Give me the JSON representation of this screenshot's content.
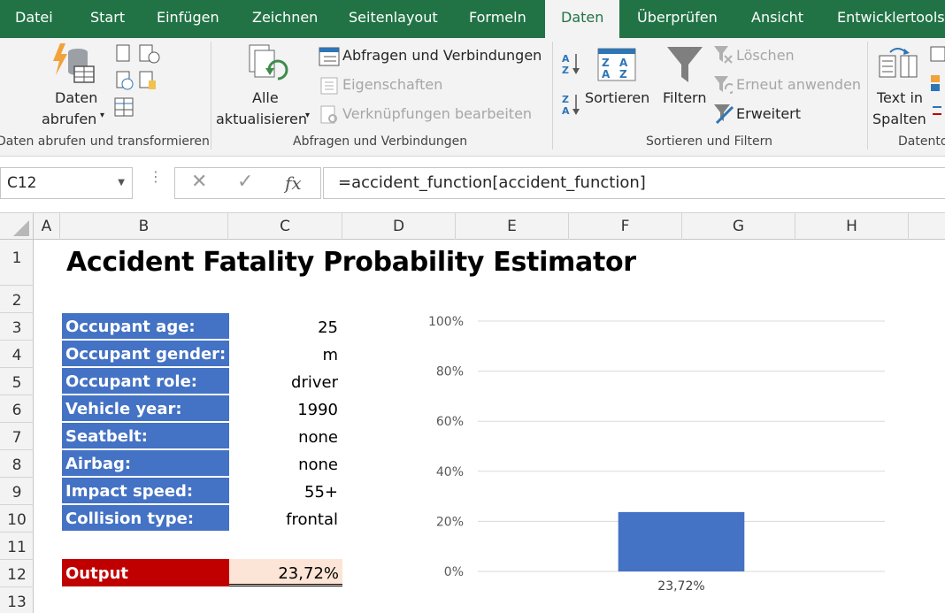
{
  "tabs": [
    {
      "label": "Datei",
      "active": false
    },
    {
      "label": "Start",
      "active": false
    },
    {
      "label": "Einfügen",
      "active": false
    },
    {
      "label": "Zeichnen",
      "active": false
    },
    {
      "label": "Seitenlayout",
      "active": false
    },
    {
      "label": "Formeln",
      "active": false
    },
    {
      "label": "Daten",
      "active": true
    },
    {
      "label": "Überprüfen",
      "active": false
    },
    {
      "label": "Ansicht",
      "active": false
    },
    {
      "label": "Entwicklertools",
      "active": false
    }
  ],
  "ribbon": {
    "get_data": {
      "line1": "Daten",
      "line2": "abrufen",
      "group_label": "Daten abrufen und transformieren"
    },
    "queries": {
      "refresh_line1": "Alle",
      "refresh_line2": "aktualisieren",
      "queries_connections": "Abfragen und Verbindungen",
      "properties": "Eigenschaften",
      "edit_links": "Verknüpfungen bearbeiten",
      "group_label": "Abfragen und Verbindungen"
    },
    "sort_filter": {
      "sort": "Sortieren",
      "filter": "Filtern",
      "clear": "Löschen",
      "reapply": "Erneut anwenden",
      "advanced": "Erweitert",
      "group_label": "Sortieren und Filtern"
    },
    "data_tools": {
      "text_to_columns_line1": "Text in",
      "text_to_columns_line2": "Spalten",
      "group_label": "Datento"
    }
  },
  "formula_bar": {
    "name_box": "C12",
    "formula": "=accident_function[accident_function]"
  },
  "grid": {
    "columns": [
      "A",
      "B",
      "C",
      "D",
      "E",
      "F",
      "G",
      "H"
    ],
    "rows": [
      "1",
      "2",
      "3",
      "4",
      "5",
      "6",
      "7",
      "8",
      "9",
      "10",
      "11",
      "12",
      "13"
    ]
  },
  "sheet": {
    "title": "Accident Fatality Probability Estimator",
    "inputs": [
      {
        "label": "Occupant age:",
        "value": "25"
      },
      {
        "label": "Occupant gender:",
        "value": "m"
      },
      {
        "label": "Occupant role:",
        "value": "driver"
      },
      {
        "label": "Vehicle year:",
        "value": "1990"
      },
      {
        "label": "Seatbelt:",
        "value": "none"
      },
      {
        "label": "Airbag:",
        "value": "none"
      },
      {
        "label": "Impact speed:",
        "value": "55+"
      },
      {
        "label": "Collision type:",
        "value": "frontal"
      }
    ],
    "output": {
      "label": "Output",
      "value": "23,72%"
    }
  },
  "colors": {
    "accent": "#217346",
    "label_fill": "#4472c4",
    "output_label_fill": "#c00000",
    "output_value_fill": "#fce4d6",
    "bar": "#4472c4"
  },
  "chart_data": {
    "type": "bar",
    "categories": [
      ""
    ],
    "values": [
      23.72
    ],
    "data_labels": [
      "23,72%"
    ],
    "yticks": [
      "0%",
      "20%",
      "40%",
      "60%",
      "80%",
      "100%"
    ],
    "ylim": [
      0,
      100
    ],
    "grid": true,
    "title": "",
    "xlabel": "",
    "ylabel": ""
  }
}
